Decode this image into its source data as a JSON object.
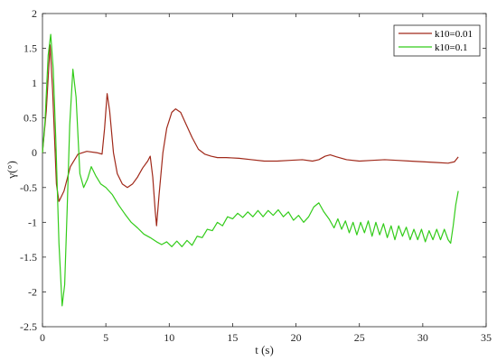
{
  "chart_data": {
    "type": "line",
    "xlabel": "t (s)",
    "ylabel": "γ(°)",
    "xlim": [
      0,
      35
    ],
    "ylim": [
      -2.5,
      2
    ],
    "xticks": [
      0,
      5,
      10,
      15,
      20,
      25,
      30,
      35
    ],
    "yticks": [
      -2.5,
      -2,
      -1.5,
      -1,
      -0.5,
      0,
      0.5,
      1,
      1.5,
      2
    ],
    "xtick_labels": [
      "0",
      "5",
      "10",
      "15",
      "20",
      "25",
      "30",
      "35"
    ],
    "ytick_labels": [
      "-2.5",
      "-2",
      "-1.5",
      "-1",
      "-0.5",
      "0",
      "0.5",
      "1",
      "1.5",
      "2"
    ],
    "grid": false,
    "legend_position": "top-right",
    "series": [
      {
        "name": "k10=0.01",
        "color": "#a0291a",
        "points": [
          [
            0,
            0
          ],
          [
            0.3,
            0.6
          ],
          [
            0.6,
            1.55
          ],
          [
            0.8,
            0.9
          ],
          [
            1.1,
            -0.45
          ],
          [
            1.3,
            -0.7
          ],
          [
            1.7,
            -0.55
          ],
          [
            2.2,
            -0.2
          ],
          [
            2.8,
            -0.02
          ],
          [
            3.5,
            0.02
          ],
          [
            4.3,
            0
          ],
          [
            4.7,
            -0.02
          ],
          [
            4.9,
            0.35
          ],
          [
            5.1,
            0.85
          ],
          [
            5.3,
            0.6
          ],
          [
            5.6,
            0
          ],
          [
            5.9,
            -0.3
          ],
          [
            6.3,
            -0.45
          ],
          [
            6.7,
            -0.5
          ],
          [
            7.1,
            -0.45
          ],
          [
            7.5,
            -0.35
          ],
          [
            7.9,
            -0.22
          ],
          [
            8.3,
            -0.12
          ],
          [
            8.5,
            -0.05
          ],
          [
            8.7,
            -0.35
          ],
          [
            8.9,
            -0.85
          ],
          [
            9.0,
            -1.05
          ],
          [
            9.2,
            -0.6
          ],
          [
            9.5,
            0
          ],
          [
            9.8,
            0.35
          ],
          [
            10.2,
            0.58
          ],
          [
            10.5,
            0.63
          ],
          [
            10.9,
            0.58
          ],
          [
            11.3,
            0.42
          ],
          [
            11.8,
            0.22
          ],
          [
            12.3,
            0.05
          ],
          [
            12.8,
            -0.02
          ],
          [
            13.3,
            -0.05
          ],
          [
            13.8,
            -0.07
          ],
          [
            14.5,
            -0.07
          ],
          [
            15.5,
            -0.08
          ],
          [
            16.5,
            -0.1
          ],
          [
            17.5,
            -0.12
          ],
          [
            18.5,
            -0.12
          ],
          [
            19.5,
            -0.11
          ],
          [
            20.5,
            -0.1
          ],
          [
            21.3,
            -0.12
          ],
          [
            21.8,
            -0.1
          ],
          [
            22.3,
            -0.05
          ],
          [
            22.7,
            -0.03
          ],
          [
            23.2,
            -0.06
          ],
          [
            24,
            -0.1
          ],
          [
            25,
            -0.12
          ],
          [
            26,
            -0.11
          ],
          [
            27,
            -0.1
          ],
          [
            28,
            -0.11
          ],
          [
            29,
            -0.12
          ],
          [
            30,
            -0.13
          ],
          [
            31,
            -0.14
          ],
          [
            32,
            -0.15
          ],
          [
            32.5,
            -0.13
          ],
          [
            32.8,
            -0.06
          ]
        ]
      },
      {
        "name": "k10=0.1",
        "color": "#33cc1a",
        "points": [
          [
            0,
            0
          ],
          [
            0.2,
            0.45
          ],
          [
            0.45,
            1.4
          ],
          [
            0.65,
            1.7
          ],
          [
            0.85,
            1.2
          ],
          [
            1.05,
            0.2
          ],
          [
            1.3,
            -1.3
          ],
          [
            1.55,
            -2.2
          ],
          [
            1.75,
            -1.9
          ],
          [
            1.95,
            -0.8
          ],
          [
            2.15,
            0.4
          ],
          [
            2.4,
            1.2
          ],
          [
            2.65,
            0.8
          ],
          [
            2.95,
            -0.3
          ],
          [
            3.25,
            -0.5
          ],
          [
            3.55,
            -0.38
          ],
          [
            3.85,
            -0.2
          ],
          [
            4.2,
            -0.33
          ],
          [
            4.6,
            -0.45
          ],
          [
            5,
            -0.5
          ],
          [
            5.5,
            -0.6
          ],
          [
            6,
            -0.75
          ],
          [
            6.5,
            -0.88
          ],
          [
            7,
            -1.0
          ],
          [
            7.5,
            -1.08
          ],
          [
            8,
            -1.17
          ],
          [
            8.5,
            -1.22
          ],
          [
            9,
            -1.28
          ],
          [
            9.4,
            -1.32
          ],
          [
            9.8,
            -1.28
          ],
          [
            10.2,
            -1.35
          ],
          [
            10.6,
            -1.27
          ],
          [
            11,
            -1.35
          ],
          [
            11.4,
            -1.26
          ],
          [
            11.8,
            -1.33
          ],
          [
            12.2,
            -1.2
          ],
          [
            12.6,
            -1.22
          ],
          [
            13,
            -1.1
          ],
          [
            13.4,
            -1.12
          ],
          [
            13.8,
            -1.0
          ],
          [
            14.2,
            -1.05
          ],
          [
            14.6,
            -0.92
          ],
          [
            15,
            -0.95
          ],
          [
            15.4,
            -0.87
          ],
          [
            15.8,
            -0.93
          ],
          [
            16.2,
            -0.85
          ],
          [
            16.6,
            -0.92
          ],
          [
            17,
            -0.83
          ],
          [
            17.4,
            -0.92
          ],
          [
            17.8,
            -0.83
          ],
          [
            18.2,
            -0.9
          ],
          [
            18.6,
            -0.82
          ],
          [
            19,
            -0.92
          ],
          [
            19.4,
            -0.85
          ],
          [
            19.8,
            -0.97
          ],
          [
            20.2,
            -0.9
          ],
          [
            20.6,
            -1.0
          ],
          [
            21,
            -0.92
          ],
          [
            21.4,
            -0.78
          ],
          [
            21.8,
            -0.72
          ],
          [
            22.2,
            -0.85
          ],
          [
            22.6,
            -0.95
          ],
          [
            23,
            -1.08
          ],
          [
            23.3,
            -0.95
          ],
          [
            23.6,
            -1.1
          ],
          [
            23.9,
            -0.98
          ],
          [
            24.2,
            -1.15
          ],
          [
            24.5,
            -1.0
          ],
          [
            24.8,
            -1.18
          ],
          [
            25.1,
            -1.0
          ],
          [
            25.4,
            -1.15
          ],
          [
            25.7,
            -0.98
          ],
          [
            26,
            -1.2
          ],
          [
            26.3,
            -1.0
          ],
          [
            26.6,
            -1.18
          ],
          [
            26.9,
            -1.02
          ],
          [
            27.2,
            -1.22
          ],
          [
            27.5,
            -1.05
          ],
          [
            27.8,
            -1.25
          ],
          [
            28.1,
            -1.05
          ],
          [
            28.4,
            -1.2
          ],
          [
            28.7,
            -1.07
          ],
          [
            29,
            -1.25
          ],
          [
            29.3,
            -1.1
          ],
          [
            29.6,
            -1.25
          ],
          [
            29.9,
            -1.1
          ],
          [
            30.2,
            -1.28
          ],
          [
            30.5,
            -1.12
          ],
          [
            30.8,
            -1.25
          ],
          [
            31.1,
            -1.1
          ],
          [
            31.4,
            -1.25
          ],
          [
            31.7,
            -1.1
          ],
          [
            32.0,
            -1.25
          ],
          [
            32.2,
            -1.3
          ],
          [
            32.4,
            -1.05
          ],
          [
            32.6,
            -0.75
          ],
          [
            32.8,
            -0.55
          ]
        ]
      }
    ]
  }
}
